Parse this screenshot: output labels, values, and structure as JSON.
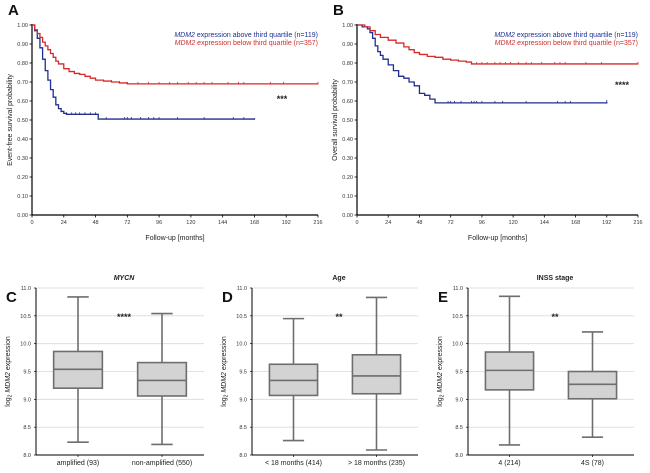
{
  "chart_data": [
    {
      "panel": "A",
      "type": "line",
      "subtype": "kaplan-meier",
      "title": "",
      "xlabel": "Follow-up [months]",
      "ylabel": "Event-free survival probability",
      "xlim": [
        0,
        216
      ],
      "ylim": [
        0,
        1
      ],
      "xticks": [
        "0",
        "24",
        "48",
        "72",
        "96",
        "120",
        "144",
        "168",
        "192",
        "216"
      ],
      "yticks": [
        "0.00",
        "0.10",
        "0.20",
        "0.30",
        "0.40",
        "0.50",
        "0.60",
        "0.70",
        "0.80",
        "0.90",
        "1.00"
      ],
      "legend_position": "top-right",
      "significance": "***",
      "series": [
        {
          "name_italic": "MDM2",
          "name_rest": " expression above third quartile (n=119)",
          "color": "#1f2f8f",
          "x": [
            0,
            2,
            4,
            6,
            8,
            10,
            12,
            14,
            16,
            18,
            20,
            22,
            24,
            26,
            28,
            30,
            36,
            42,
            48,
            50,
            60,
            72,
            96,
            120,
            144,
            168
          ],
          "y": [
            1.0,
            0.97,
            0.93,
            0.88,
            0.82,
            0.76,
            0.71,
            0.66,
            0.62,
            0.58,
            0.56,
            0.545,
            0.535,
            0.53,
            0.53,
            0.53,
            0.53,
            0.53,
            0.53,
            0.505,
            0.505,
            0.505,
            0.505,
            0.505,
            0.505,
            0.51
          ],
          "censor_x": [
            26,
            30,
            33,
            36,
            40,
            44,
            48,
            56,
            70,
            72,
            75,
            82,
            88,
            92,
            96,
            110,
            130,
            152,
            160
          ]
        },
        {
          "name_italic": "MDM2",
          "name_rest": " expression below third quartile (n=357)",
          "color": "#d42a2a",
          "x": [
            0,
            2,
            4,
            6,
            8,
            10,
            12,
            14,
            16,
            18,
            20,
            24,
            28,
            32,
            36,
            40,
            44,
            48,
            54,
            60,
            66,
            72,
            96,
            120,
            144,
            168,
            192,
            216
          ],
          "y": [
            1.0,
            0.975,
            0.955,
            0.935,
            0.91,
            0.89,
            0.87,
            0.85,
            0.83,
            0.81,
            0.795,
            0.77,
            0.755,
            0.745,
            0.74,
            0.73,
            0.72,
            0.71,
            0.705,
            0.7,
            0.695,
            0.69,
            0.69,
            0.69,
            0.69,
            0.69,
            0.69,
            0.69
          ],
          "censor_x": [
            60,
            66,
            72,
            80,
            88,
            96,
            104,
            110,
            118,
            124,
            130,
            136,
            148,
            156,
            160,
            180,
            190,
            216
          ]
        }
      ]
    },
    {
      "panel": "B",
      "type": "line",
      "subtype": "kaplan-meier",
      "title": "",
      "xlabel": "Follow-up [months]",
      "ylabel": "Overall survival probability",
      "xlim": [
        0,
        216
      ],
      "ylim": [
        0,
        1
      ],
      "xticks": [
        "0",
        "24",
        "48",
        "72",
        "96",
        "120",
        "144",
        "168",
        "192",
        "216"
      ],
      "yticks": [
        "0.00",
        "0.10",
        "0.20",
        "0.30",
        "0.40",
        "0.50",
        "0.60",
        "0.70",
        "0.80",
        "0.90",
        "1.00"
      ],
      "legend_position": "top-right",
      "significance": "****",
      "series": [
        {
          "name_italic": "MDM2",
          "name_rest": " expression above third quartile (n=119)",
          "color": "#1f2f8f",
          "x": [
            0,
            4,
            8,
            10,
            12,
            14,
            16,
            18,
            20,
            24,
            28,
            32,
            36,
            40,
            44,
            48,
            52,
            56,
            60,
            72,
            96,
            120,
            144,
            168,
            192
          ],
          "y": [
            1.0,
            0.99,
            0.98,
            0.96,
            0.93,
            0.89,
            0.86,
            0.84,
            0.82,
            0.79,
            0.76,
            0.73,
            0.72,
            0.7,
            0.68,
            0.64,
            0.63,
            0.61,
            0.59,
            0.59,
            0.59,
            0.59,
            0.59,
            0.59,
            0.595
          ],
          "censor_x": [
            70,
            72,
            75,
            80,
            88,
            90,
            92,
            96,
            106,
            112,
            130,
            154,
            160,
            164,
            192
          ]
        },
        {
          "name_italic": "MDM2",
          "name_rest": " expression below third quartile (n=357)",
          "color": "#d42a2a",
          "x": [
            0,
            6,
            10,
            14,
            18,
            24,
            30,
            36,
            40,
            44,
            48,
            54,
            60,
            66,
            72,
            78,
            84,
            88,
            96,
            120,
            144,
            168,
            192,
            216
          ],
          "y": [
            1.0,
            0.99,
            0.97,
            0.95,
            0.935,
            0.92,
            0.905,
            0.885,
            0.87,
            0.855,
            0.845,
            0.835,
            0.83,
            0.82,
            0.815,
            0.81,
            0.805,
            0.795,
            0.795,
            0.795,
            0.795,
            0.795,
            0.795,
            0.795
          ],
          "censor_x": [
            92,
            96,
            100,
            106,
            110,
            114,
            118,
            124,
            130,
            134,
            142,
            152,
            156,
            160,
            176,
            188,
            216
          ]
        }
      ]
    },
    {
      "panel": "C",
      "type": "boxplot",
      "title": "MYCN",
      "title_italic": true,
      "ylabel_prefix": "log",
      "ylabel_sub": "2",
      "ylabel_italic": "MDM2",
      "ylabel_rest": " expression",
      "ylim": [
        8.0,
        11.0
      ],
      "yticks": [
        "8.0",
        "8.5",
        "9.0",
        "9.5",
        "10.0",
        "10.5",
        "11.0"
      ],
      "significance": "****",
      "categories": [
        "amplified (93)",
        "non-amplified (550)"
      ],
      "boxes": [
        {
          "min": 8.23,
          "q1": 9.2,
          "median": 9.54,
          "q3": 9.86,
          "max": 10.84
        },
        {
          "min": 8.19,
          "q1": 9.06,
          "median": 9.34,
          "q3": 9.66,
          "max": 10.54
        }
      ]
    },
    {
      "panel": "D",
      "type": "boxplot",
      "title": "Age",
      "title_italic": false,
      "ylabel_prefix": "log",
      "ylabel_sub": "2",
      "ylabel_italic": "MDM2",
      "ylabel_rest": " expression",
      "ylim": [
        8.0,
        11.0
      ],
      "yticks": [
        "8.0",
        "8.5",
        "9.0",
        "9.5",
        "10.0",
        "10.5",
        "11.0"
      ],
      "significance": "**",
      "categories": [
        "< 18 months (414)",
        "> 18 months (235)"
      ],
      "boxes": [
        {
          "min": 8.26,
          "q1": 9.07,
          "median": 9.34,
          "q3": 9.63,
          "max": 10.45
        },
        {
          "min": 8.09,
          "q1": 9.1,
          "median": 9.42,
          "q3": 9.8,
          "max": 10.83
        }
      ]
    },
    {
      "panel": "E",
      "type": "boxplot",
      "title": "INSS stage",
      "title_italic": false,
      "ylabel_prefix": "log",
      "ylabel_sub": "2",
      "ylabel_italic": "MDM2",
      "ylabel_rest": " expression",
      "ylim": [
        8.0,
        11.0
      ],
      "yticks": [
        "8.0",
        "8.5",
        "9.0",
        "9.5",
        "10.0",
        "10.5",
        "11.0"
      ],
      "significance": "**",
      "categories": [
        "4 (214)",
        "4S (78)"
      ],
      "boxes": [
        {
          "min": 8.18,
          "q1": 9.17,
          "median": 9.52,
          "q3": 9.85,
          "max": 10.85
        },
        {
          "min": 8.32,
          "q1": 9.01,
          "median": 9.27,
          "q3": 9.5,
          "max": 10.21
        }
      ]
    }
  ]
}
